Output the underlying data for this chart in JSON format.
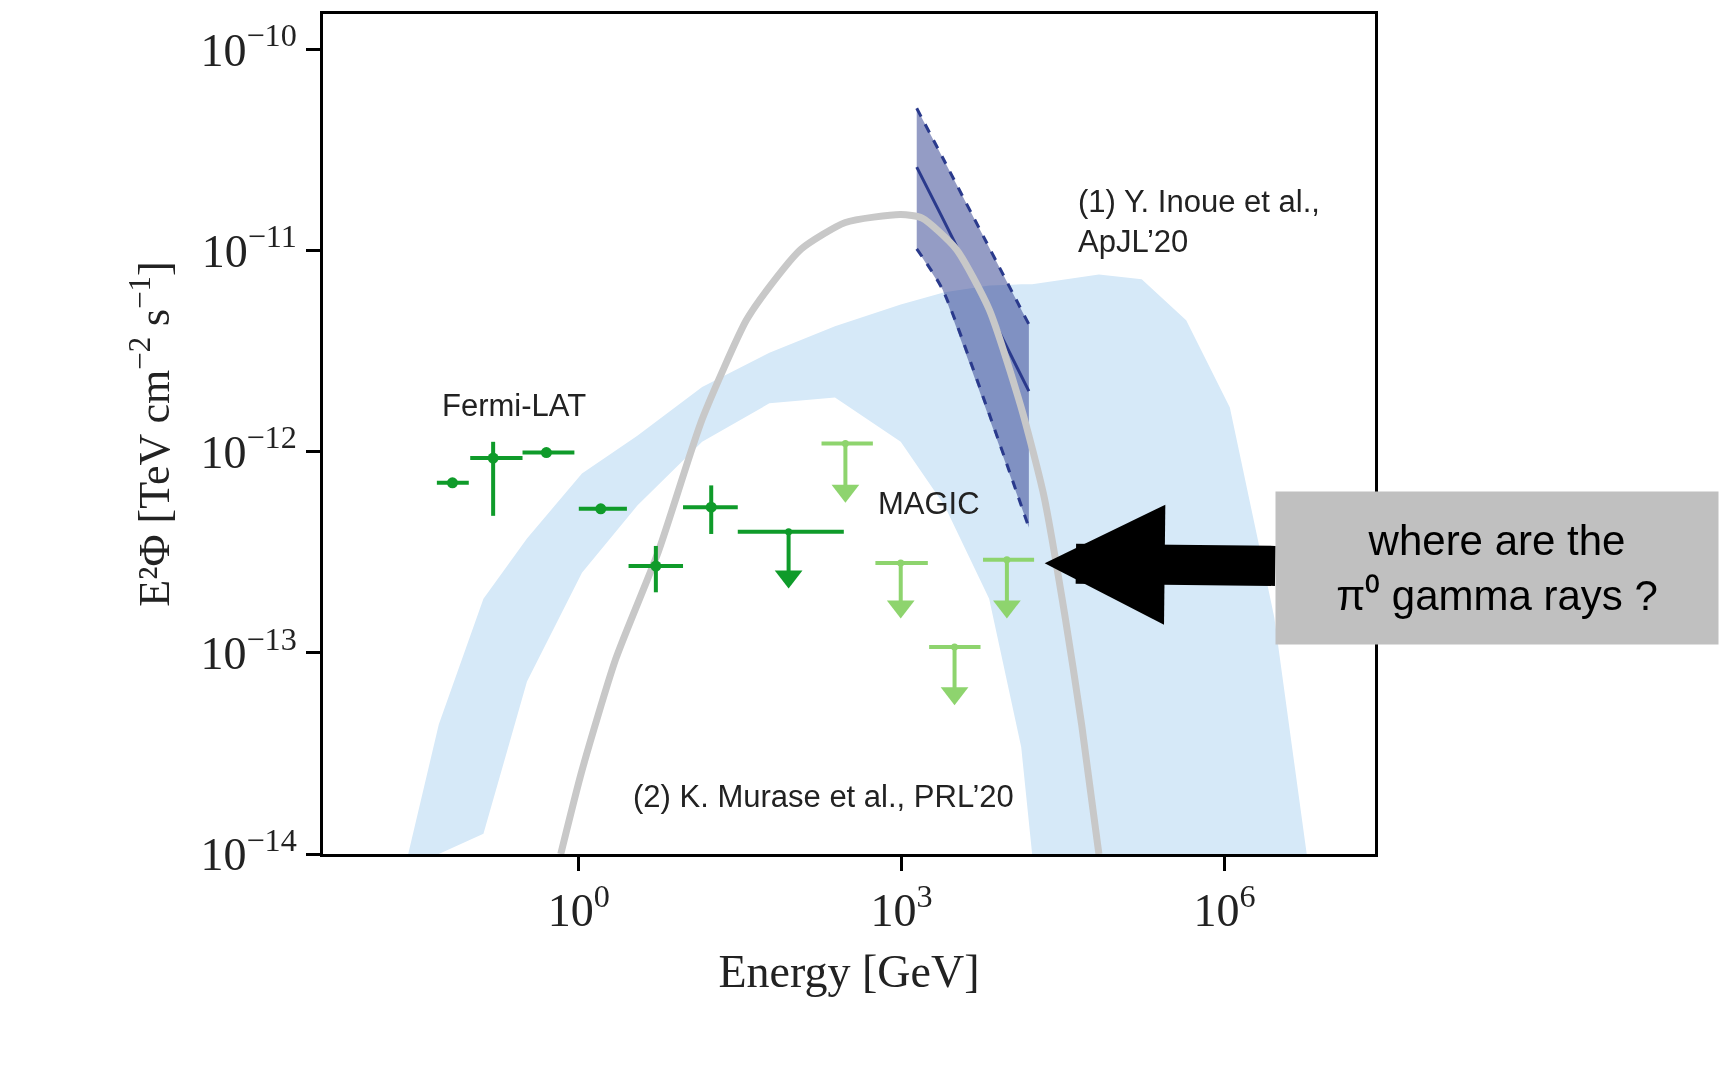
{
  "chart_data": {
    "type": "scatter",
    "xlabel": "Energy [GeV]",
    "ylabel": "E²Φ [TeV cm$^{−2}$ s$^{−1}$]",
    "log": "xy",
    "xlim": [
      0.0042,
      25000000
    ],
    "ylim": [
      1e-14,
      1.5e-10
    ],
    "xticks": [
      {
        "value": 1,
        "label": "10$^{0}$"
      },
      {
        "value": 1000,
        "label": "10$^{3}$"
      },
      {
        "value": 1000000,
        "label": "10$^{6}$"
      }
    ],
    "yticks": [
      {
        "value": 1e-10,
        "label": "10$^{−10}$"
      },
      {
        "value": 1e-11,
        "label": "10$^{−11}$"
      },
      {
        "value": 1e-12,
        "label": "10$^{−12}$"
      },
      {
        "value": 1e-13,
        "label": "10$^{−13}$"
      },
      {
        "value": 1e-14,
        "label": "10$^{−14}$"
      }
    ],
    "series": [
      {
        "type": "line",
        "color": "#d6e9f8",
        "x": [
          0.026,
          0.05,
          0.13,
          0.33,
          1.07,
          3.5,
          14,
          59,
          240,
          980,
          2500,
          6500,
          12900,
          16300,
          68000,
          170000,
          440000,
          1120000,
          2900000,
          5800000
        ],
        "lower": [
          1e-14,
          1e-14,
          1.26e-14,
          7.2e-14,
          2.5e-13,
          5.4e-13,
          1.12e-12,
          1.74e-12,
          1.86e-12,
          1.12e-12,
          5.4e-13,
          1.86e-13,
          3.4e-14,
          1e-14,
          1e-14,
          1e-14,
          1e-14,
          1e-14,
          1e-14,
          1e-14
        ],
        "values": [
          null,
          null,
          null,
          null,
          null,
          null,
          null,
          null,
          null,
          null,
          null,
          null,
          null,
          null,
          null,
          null,
          null,
          null,
          null,
          null
        ],
        "upper": [
          1e-14,
          4.4e-14,
          1.86e-13,
          3.7e-13,
          7.8e-13,
          1.2e-12,
          2.1e-12,
          3.1e-12,
          4.2e-12,
          5.4e-12,
          6.2e-12,
          6.7e-12,
          6.8e-12,
          6.8e-12,
          7.6e-12,
          7.2e-12,
          4.5e-12,
          1.66e-12,
          1.5e-13,
          1e-14
        ]
      },
      {
        "type": "line",
        "color": "#2a3a8c",
        "x": [
          1380,
          2400,
          15200
        ],
        "values": [
          2.6e-11,
          1.45e-11,
          2e-12
        ],
        "lower": [
          1.02e-11,
          6.4e-12,
          4.2e-13
        ],
        "upper": [
          5.1e-11,
          2.9e-11,
          4.3e-12
        ]
      },
      {
        "type": "line",
        "color": "#2a3a8c",
        "line_style": "dashed",
        "x": [
          1380,
          2400,
          15200
        ],
        "values": [
          1.02e-11,
          6.4e-12,
          4.2e-13
        ]
      },
      {
        "type": "line",
        "color": "#2a3a8c",
        "line_style": "dashed",
        "x": [
          1380,
          2400,
          15200
        ],
        "values": [
          5.1e-11,
          2.9e-11,
          4.3e-12
        ]
      },
      {
        "type": "line",
        "color": "#c8c8c8",
        "x": [
          0.68,
          1.07,
          2.2,
          5.5,
          14,
          36,
          59,
          117,
          300,
          980,
          1550,
          3200,
          6500,
          12900,
          21000,
          33000,
          47000,
          68000
        ],
        "values": [
          1e-14,
          2.6e-14,
          9.3e-14,
          3.2e-13,
          1.45e-12,
          4.5e-12,
          6.6e-12,
          1.02e-11,
          1.38e-11,
          1.51e-11,
          1.45e-11,
          1.02e-11,
          5.1e-12,
          1.66e-12,
          6e-13,
          1.51e-13,
          4.4e-14,
          1e-14
        ]
      },
      {
        "color": "#0f9b2a",
        "marker": "circle",
        "x": [
          0.067,
          0.16,
          0.5,
          1.6,
          5.2,
          17
        ],
        "values": [
          7e-13,
          9.3e-13,
          9.9e-13,
          5.2e-13,
          2.7e-13,
          5.3e-13
        ],
        "errors": [
          null,
          [
            4.8e-13,
            1.12e-12
          ],
          null,
          null,
          [
            2e-13,
            3.4e-13
          ],
          [
            3.9e-13,
            6.8e-13
          ]
        ],
        "xerrors": [
          [
            0.048,
            0.095
          ],
          [
            0.098,
            0.3
          ],
          [
            0.3,
            0.91
          ],
          [
            1.0,
            2.8
          ],
          [
            2.9,
            9.3
          ],
          [
            9.3,
            30
          ]
        ]
      },
      {
        "color": "#0f9b2a",
        "marker": "circle",
        "x": [
          89
        ],
        "values": [
          4e-13
        ],
        "xerrors": [
          [
            30,
            290
          ]
        ]
      },
      {
        "color": "#0f9b2a",
        "marker": "triangle",
        "x": [
          89
        ],
        "values": [
          2.4e-13
        ],
        "errors": [
          [
            2.4e-13,
            4e-13
          ]
        ]
      },
      {
        "color": "#8ed46e",
        "marker": "circle",
        "x": [
          300,
          980,
          3100,
          9500
        ],
        "values": [
          1.1e-12,
          2.8e-13,
          1.07e-13,
          2.9e-13
        ],
        "xerrors": [
          [
            180,
            540
          ],
          [
            570,
            1750
          ],
          [
            1800,
            5400
          ],
          [
            5700,
            17000
          ]
        ]
      },
      {
        "color": "#8ed46e",
        "marker": "triangle",
        "x": [
          300,
          980,
          3100,
          9500
        ],
        "values": [
          6.4e-13,
          1.7e-13,
          6.3e-14,
          1.7e-13
        ],
        "errors": [
          [
            6.4e-13,
            1.1e-12
          ],
          [
            1.7e-13,
            2.8e-13
          ],
          [
            6.3e-14,
            1.07e-13
          ],
          [
            1.7e-13,
            2.9e-13
          ]
        ]
      }
    ],
    "annotations": [
      "Fermi-LAT",
      "MAGIC",
      "(1) Y. Inoue et al.,\nApJL’20",
      "(2) K. Murase et al., PRL’20",
      "where are the\nπ⁰ gamma rays ?"
    ]
  }
}
